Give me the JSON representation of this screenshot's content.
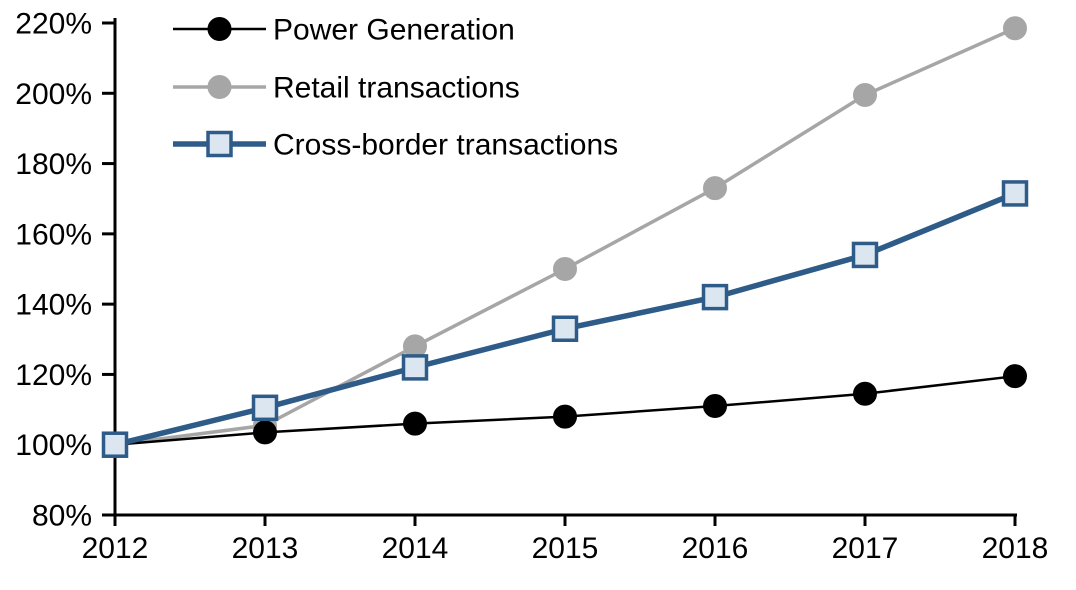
{
  "chart_data": {
    "type": "line",
    "title": "",
    "xlabel": "",
    "ylabel": "",
    "x": [
      2012,
      2013,
      2014,
      2015,
      2016,
      2017,
      2018
    ],
    "x_tick_labels": [
      "2012",
      "2013",
      "2014",
      "2015",
      "2016",
      "2017",
      "2018"
    ],
    "y_ticks": [
      80,
      100,
      120,
      140,
      160,
      180,
      200,
      220
    ],
    "y_tick_labels": [
      "80%",
      "100%",
      "120%",
      "140%",
      "160%",
      "180%",
      "200%",
      "220%"
    ],
    "ylim": [
      80,
      220
    ],
    "grid": false,
    "legend_position": "top-left-inside",
    "background_color": "#FFFFFF",
    "axis_color": "#000000",
    "draw_order": [
      1,
      0,
      2
    ],
    "series": [
      {
        "name": "Power Generation",
        "slug": "power-generation",
        "marker": "circle",
        "color": "#000000",
        "marker_fill": "#000000",
        "marker_stroke": "#000000",
        "line_width": 2.5,
        "values": [
          100,
          103.5,
          106,
          108,
          111,
          114.5,
          119.5
        ]
      },
      {
        "name": "Retail transactions",
        "slug": "retail-transactions",
        "marker": "circle",
        "color": "#A6A6A6",
        "marker_fill": "#A6A6A6",
        "marker_stroke": "#A6A6A6",
        "line_width": 3.5,
        "values": [
          100,
          105.5,
          128,
          150,
          173,
          199.5,
          218.5
        ]
      },
      {
        "name": "Cross-border transactions",
        "slug": "cross-border-transactions",
        "marker": "square",
        "color": "#2E5B88",
        "marker_fill": "#DCE6F1",
        "marker_stroke": "#2E5B88",
        "line_width": 5.5,
        "values": [
          100,
          110.5,
          122,
          133,
          142,
          154,
          171.5
        ]
      }
    ]
  }
}
